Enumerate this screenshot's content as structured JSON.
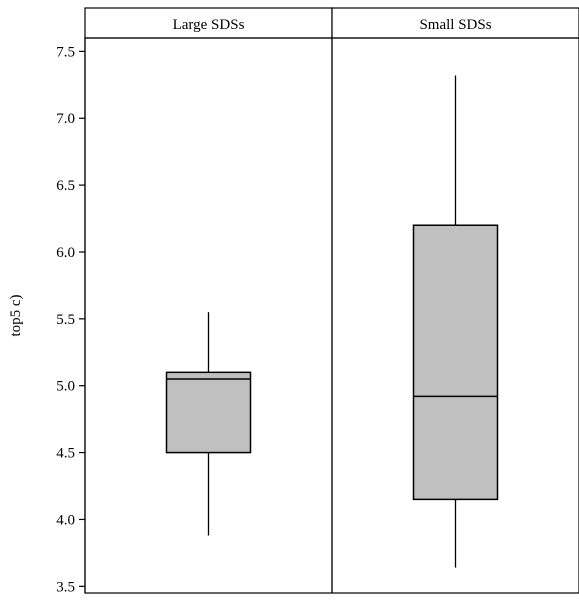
{
  "chart_data": {
    "type": "boxplot",
    "ylabel": "top5 c)",
    "ylim": [
      3.45,
      7.6
    ],
    "yticks": [
      3.5,
      4.0,
      4.5,
      5.0,
      5.5,
      6.0,
      6.5,
      7.0,
      7.5
    ],
    "ytick_labels": [
      "3.5",
      "4.0",
      "4.5",
      "5.0",
      "5.5",
      "6.0",
      "6.5",
      "7.0",
      "7.5"
    ],
    "panels": [
      {
        "label": "Large SDSs",
        "whisker_low": 3.88,
        "q1": 4.5,
        "median": 5.05,
        "q3": 5.1,
        "whisker_high": 5.55
      },
      {
        "label": "Small SDSs",
        "whisker_low": 3.64,
        "q1": 4.15,
        "median": 4.92,
        "q3": 6.2,
        "whisker_high": 7.32
      }
    ],
    "box_fill": "#c0c0c0",
    "line_color": "#000000",
    "grid": false
  }
}
